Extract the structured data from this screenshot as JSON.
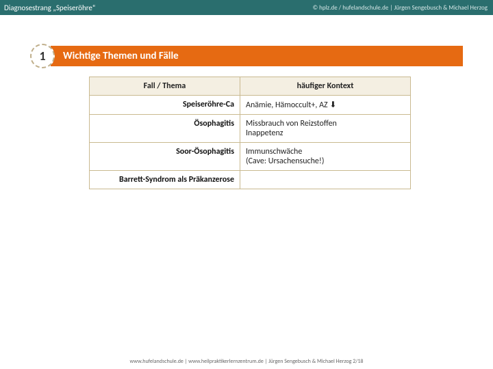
{
  "colors": {
    "topbar_bg": "#2a6e6e",
    "section_bg": "#e66a12",
    "table_border": "#c9b98f",
    "table_header_bg": "#f4efe2",
    "badge_border": "#bfae8a",
    "page_bg": "#ffffff"
  },
  "typography": {
    "font_family": "Calibri, Arial, sans-serif",
    "topbar_left_size": 11,
    "topbar_right_size": 9,
    "section_title_size": 15,
    "badge_number_size": 18,
    "table_size": 12,
    "footer_size": 8
  },
  "topbar": {
    "left": "Diagnosestrang „Speiseröhre“",
    "right": "© hplz.de / hufelandschule.de  | Jürgen Sengebusch & Michael Herzog"
  },
  "section": {
    "number": "1",
    "title": "Wichtige Themen und Fälle"
  },
  "table": {
    "header_left": "Fall / Thema",
    "header_right": "häufiger Kontext",
    "rows": [
      {
        "left": "Speiseröhre-Ca",
        "right": "Anämie, Hämoccult+, AZ ⬇"
      },
      {
        "left": "Ösophagitis",
        "right": "Missbrauch von Reizstoffen\nInappetenz"
      },
      {
        "left": "Soor-Ösophagitis",
        "right": "Immunschwäche\n(Cave: Ursachensuche!)"
      },
      {
        "left": "Barrett-Syndrom als Präkanzerose",
        "right": ""
      }
    ]
  },
  "footer": {
    "text": "www.hufelandschule.de  |  www.heilpraktikerlernzentrum.de   |    Jürgen Sengebusch  & Michael Herzog   2/18"
  }
}
